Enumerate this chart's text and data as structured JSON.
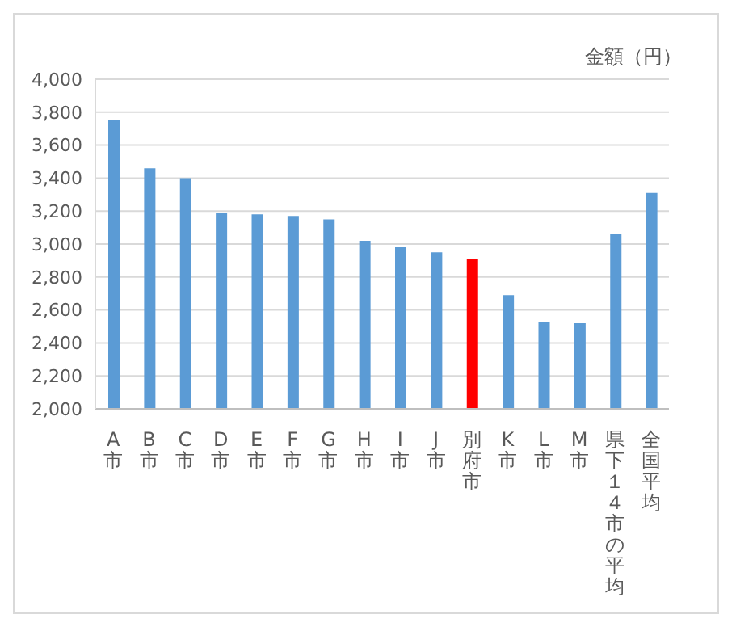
{
  "chart_data": {
    "type": "bar",
    "ylabel": "金額（円）",
    "categories": [
      "A市",
      "B市",
      "C市",
      "D市",
      "E市",
      "F市",
      "G市",
      "H市",
      "I市",
      "J市",
      "別府市",
      "K市",
      "L市",
      "M市",
      "県下１４市の平均",
      "全国平均"
    ],
    "values": [
      3750,
      3460,
      3400,
      3190,
      3180,
      3170,
      3150,
      3020,
      2980,
      2950,
      2910,
      2690,
      2530,
      2520,
      3060,
      3310
    ],
    "colors": [
      "#5b9bd5",
      "#5b9bd5",
      "#5b9bd5",
      "#5b9bd5",
      "#5b9bd5",
      "#5b9bd5",
      "#5b9bd5",
      "#5b9bd5",
      "#5b9bd5",
      "#5b9bd5",
      "#ff0000",
      "#5b9bd5",
      "#5b9bd5",
      "#5b9bd5",
      "#5b9bd5",
      "#5b9bd5"
    ],
    "ylim": [
      2000,
      4000
    ],
    "yticks": [
      {
        "value": 2000,
        "label": "2,000"
      },
      {
        "value": 2200,
        "label": "2,200"
      },
      {
        "value": 2400,
        "label": "2,400"
      },
      {
        "value": 2600,
        "label": "2,600"
      },
      {
        "value": 2800,
        "label": "2,800"
      },
      {
        "value": 3000,
        "label": "3,000"
      },
      {
        "value": 3200,
        "label": "3,200"
      },
      {
        "value": 3400,
        "label": "3,400"
      },
      {
        "value": 3600,
        "label": "3,600"
      },
      {
        "value": 3800,
        "label": "3,800"
      },
      {
        "value": 4000,
        "label": "4,000"
      }
    ],
    "grid": "y"
  }
}
